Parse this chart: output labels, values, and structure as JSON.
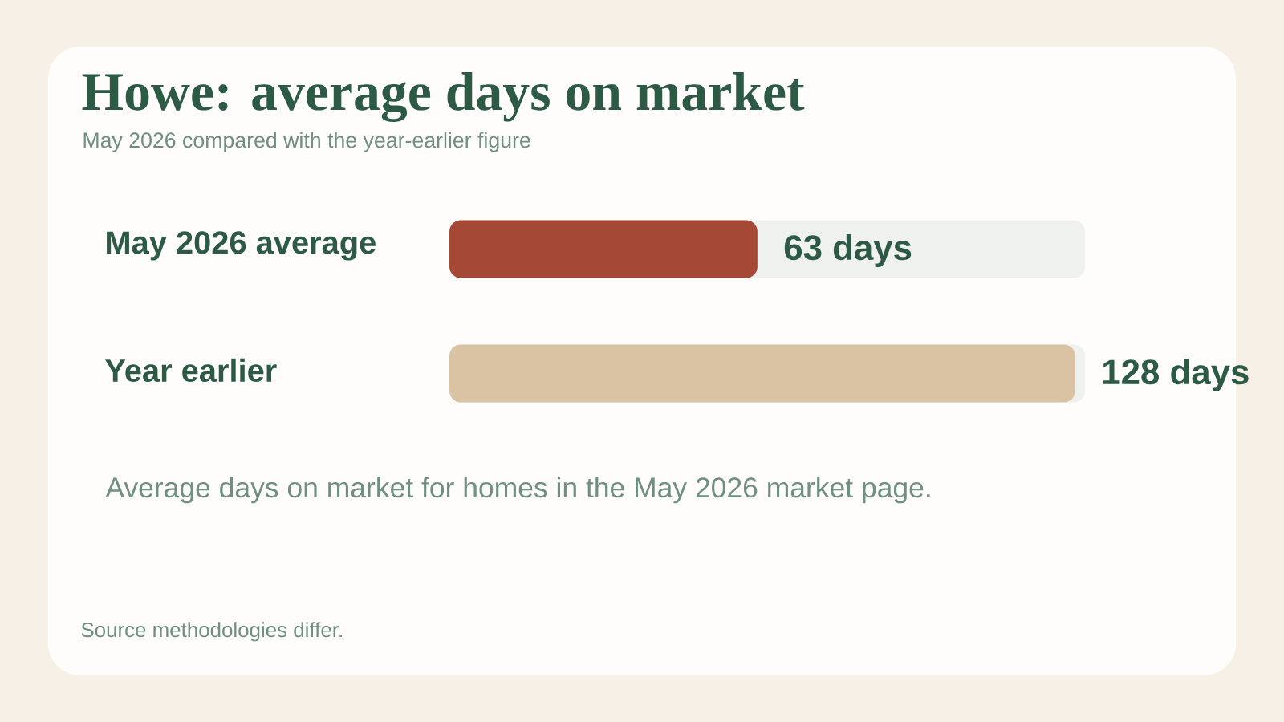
{
  "chart_data": {
    "type": "bar",
    "orientation": "horizontal",
    "title": "Howe: average days on market",
    "subtitle": "May 2026 compared with the year-earlier figure",
    "categories": [
      "May 2026 average",
      "Year earlier"
    ],
    "values": [
      63,
      128
    ],
    "colors": [
      "#a64836",
      "#d9c3a3"
    ],
    "value_labels": [
      "63 days",
      "128 days"
    ],
    "xlim": [
      0,
      130
    ],
    "annotations": [
      "Average days on market for homes in the May 2026 market page.",
      "Source methodologies differ."
    ]
  }
}
